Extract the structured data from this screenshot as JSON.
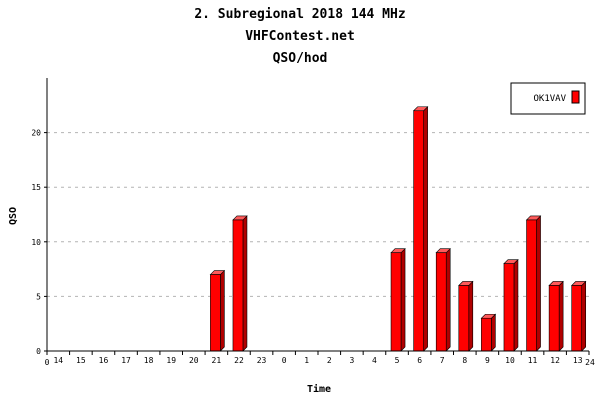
{
  "chart_data": {
    "type": "bar",
    "title_lines": [
      "2. Subregional 2018 144 MHz",
      "VHFContest.net",
      "QSO/hod"
    ],
    "xlabel": "Time",
    "ylabel": "QSO",
    "x_start_label": "0",
    "x_end_label": "24",
    "categories": [
      "14",
      "15",
      "16",
      "17",
      "18",
      "19",
      "20",
      "21",
      "22",
      "23",
      "0",
      "1",
      "2",
      "3",
      "4",
      "5",
      "6",
      "7",
      "8",
      "9",
      "10",
      "11",
      "12",
      "13"
    ],
    "series": [
      {
        "name": "OK1VAV",
        "color": "#ff0000",
        "values": [
          0,
          0,
          0,
          0,
          0,
          0,
          0,
          7,
          12,
          0,
          0,
          0,
          0,
          0,
          0,
          9,
          22,
          9,
          6,
          3,
          8,
          12,
          6,
          6
        ]
      }
    ],
    "ylim": [
      0,
      25
    ],
    "yticks": [
      0,
      5,
      10,
      15,
      20
    ],
    "grid": true,
    "legend": "top-right"
  }
}
